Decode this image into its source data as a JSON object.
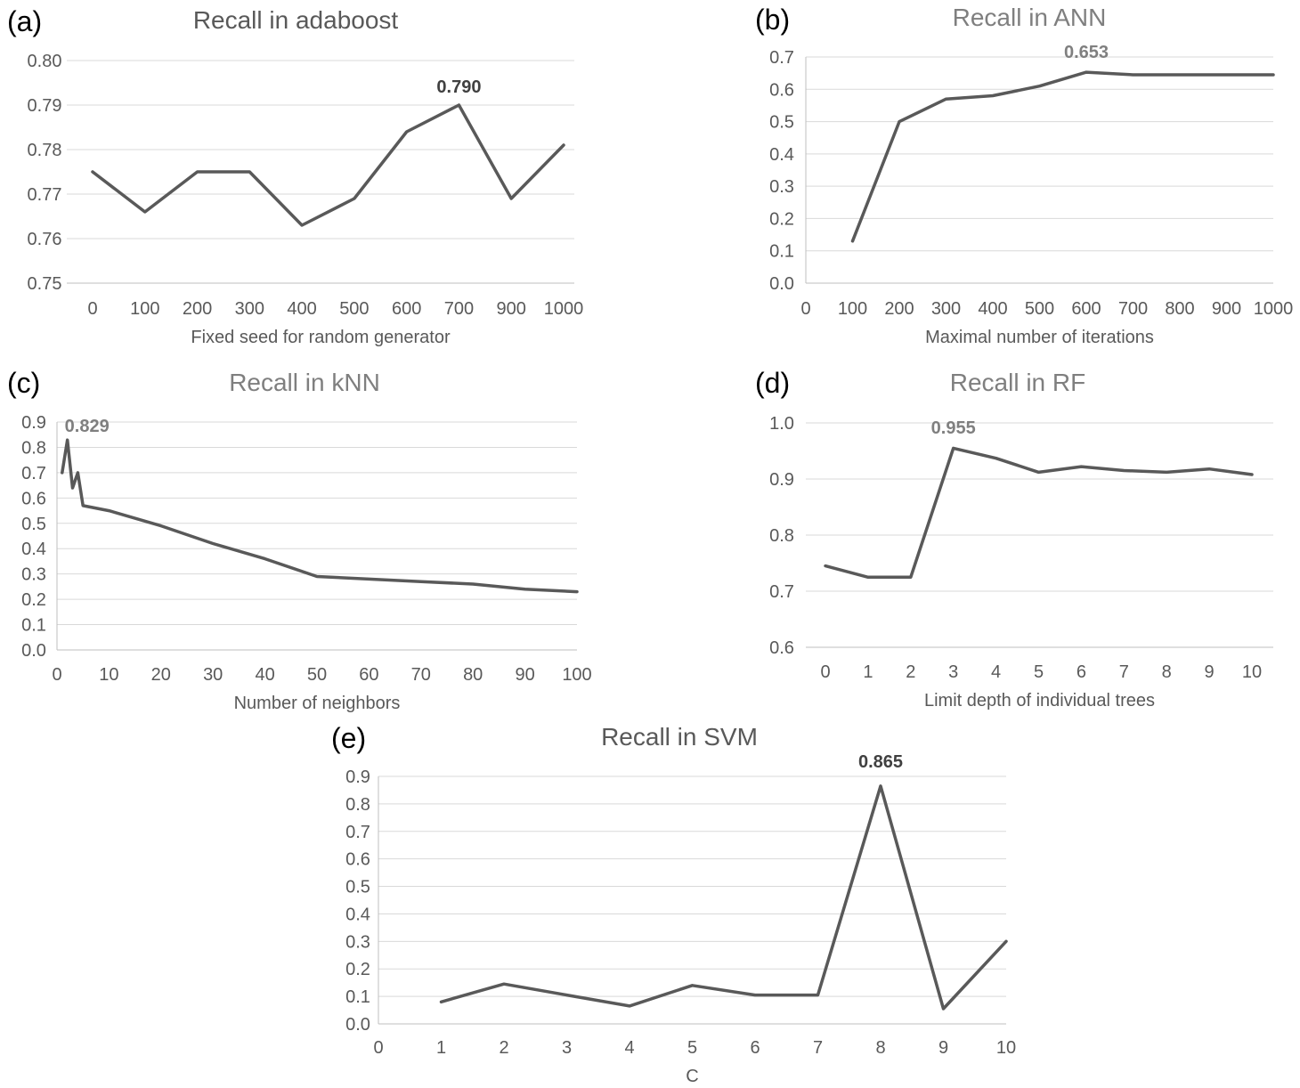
{
  "colors": {
    "line": "#595959",
    "grid": "#d9d9d9",
    "axis": "#bfbfbf",
    "tick_text": "#595959",
    "title_text": "#595959",
    "panel_label": "#000000"
  },
  "chart_data": [
    {
      "panel": "(a)",
      "type": "line",
      "title": "Recall in adaboost",
      "xlabel": "Fixed seed for random generator",
      "ylabel": "",
      "x": [
        0,
        100,
        200,
        300,
        400,
        500,
        600,
        700,
        900,
        1000
      ],
      "values": [
        0.775,
        0.766,
        0.775,
        0.775,
        0.763,
        0.769,
        0.784,
        0.79,
        0.769,
        0.781
      ],
      "categories": [
        "0",
        "100",
        "200",
        "300",
        "400",
        "500",
        "600",
        "700",
        "900",
        "1000"
      ],
      "yticks": [
        "0.75",
        "0.76",
        "0.77",
        "0.78",
        "0.79",
        "0.80"
      ],
      "ylim": [
        0.75,
        0.8
      ],
      "annotation": {
        "x": 700,
        "y": 0.79,
        "text": "0.790"
      },
      "grid": true
    },
    {
      "panel": "(b)",
      "type": "line",
      "title": "Recall in ANN",
      "xlabel": "Maximal number of iterations",
      "ylabel": "",
      "x": [
        100,
        200,
        300,
        400,
        500,
        600,
        700,
        800,
        900,
        1000
      ],
      "values": [
        0.13,
        0.5,
        0.57,
        0.58,
        0.61,
        0.653,
        0.645,
        0.645,
        0.645,
        0.645
      ],
      "xticks": [
        "0",
        "100",
        "200",
        "300",
        "400",
        "500",
        "600",
        "700",
        "800",
        "900",
        "1000"
      ],
      "yticks": [
        "0.0",
        "0.1",
        "0.2",
        "0.3",
        "0.4",
        "0.5",
        "0.6",
        "0.7"
      ],
      "xlim": [
        0,
        1000
      ],
      "ylim": [
        0,
        0.7
      ],
      "annotation": {
        "x": 600,
        "y": 0.653,
        "text": "0.653"
      },
      "grid": true
    },
    {
      "panel": "(c)",
      "type": "line",
      "title": "Recall in kNN",
      "xlabel": "Number of neighbors",
      "ylabel": "",
      "x": [
        1,
        2,
        3,
        4,
        5,
        10,
        20,
        30,
        40,
        50,
        60,
        70,
        80,
        90,
        100
      ],
      "values": [
        0.7,
        0.829,
        0.64,
        0.7,
        0.57,
        0.55,
        0.49,
        0.42,
        0.36,
        0.29,
        0.28,
        0.27,
        0.26,
        0.24,
        0.23
      ],
      "xticks": [
        "0",
        "10",
        "20",
        "30",
        "40",
        "50",
        "60",
        "70",
        "80",
        "90",
        "100"
      ],
      "yticks": [
        "0.0",
        "0.1",
        "0.2",
        "0.3",
        "0.4",
        "0.5",
        "0.6",
        "0.7",
        "0.8",
        "0.9"
      ],
      "xlim": [
        0,
        100
      ],
      "ylim": [
        0,
        0.9
      ],
      "annotation": {
        "x": 2,
        "y": 0.829,
        "text": "0.829"
      },
      "grid": true
    },
    {
      "panel": "(d)",
      "type": "line",
      "title": "Recall in RF",
      "xlabel": "Limit depth of individual trees",
      "ylabel": "",
      "x": [
        0,
        1,
        2,
        3,
        4,
        5,
        6,
        7,
        8,
        9,
        10
      ],
      "values": [
        0.745,
        0.725,
        0.725,
        0.955,
        0.937,
        0.912,
        0.922,
        0.915,
        0.912,
        0.918,
        0.908
      ],
      "categories": [
        "0",
        "1",
        "2",
        "3",
        "4",
        "5",
        "6",
        "7",
        "8",
        "9",
        "10"
      ],
      "yticks": [
        "0.6",
        "0.7",
        "0.8",
        "0.9",
        "1.0"
      ],
      "ylim": [
        0.6,
        1.0
      ],
      "annotation": {
        "x": 3,
        "y": 0.955,
        "text": "0.955"
      },
      "grid": true
    },
    {
      "panel": "(e)",
      "type": "line",
      "title": "Recall in SVM",
      "xlabel": "C",
      "ylabel": "",
      "x": [
        1,
        2,
        3,
        4,
        5,
        6,
        7,
        8,
        9,
        10
      ],
      "values": [
        0.08,
        0.145,
        0.105,
        0.065,
        0.14,
        0.105,
        0.105,
        0.865,
        0.055,
        0.3
      ],
      "xticks": [
        "0",
        "1",
        "2",
        "3",
        "4",
        "5",
        "6",
        "7",
        "8",
        "9",
        "10"
      ],
      "yticks": [
        "0.0",
        "0.1",
        "0.2",
        "0.3",
        "0.4",
        "0.5",
        "0.6",
        "0.7",
        "0.8",
        "0.9"
      ],
      "xlim": [
        0,
        10
      ],
      "ylim": [
        0,
        0.9
      ],
      "annotation": {
        "x": 8,
        "y": 0.865,
        "text": "0.865"
      },
      "grid": true
    }
  ]
}
